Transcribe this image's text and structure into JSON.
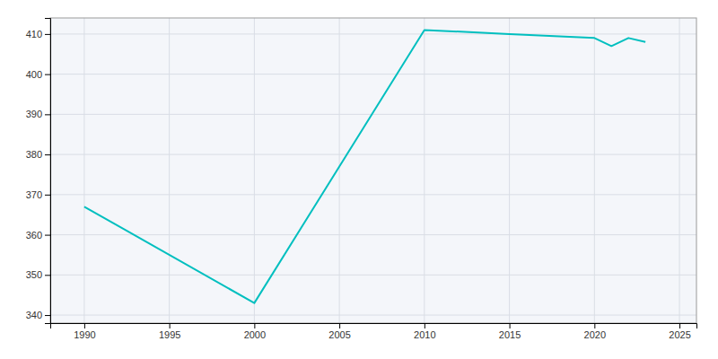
{
  "chart_data": {
    "type": "line",
    "x": [
      1990,
      2000,
      2010,
      2015,
      2020,
      2021,
      2022,
      2023
    ],
    "values": [
      367,
      343,
      411,
      410,
      409,
      407,
      409,
      408
    ],
    "color": "#00BFBF",
    "xlim": [
      1988,
      2026
    ],
    "ylim": [
      338,
      414
    ],
    "xticks": [
      1990,
      1995,
      2000,
      2005,
      2010,
      2015,
      2020,
      2025
    ],
    "yticks": [
      340,
      350,
      360,
      370,
      380,
      390,
      400,
      410
    ],
    "grid": true
  }
}
